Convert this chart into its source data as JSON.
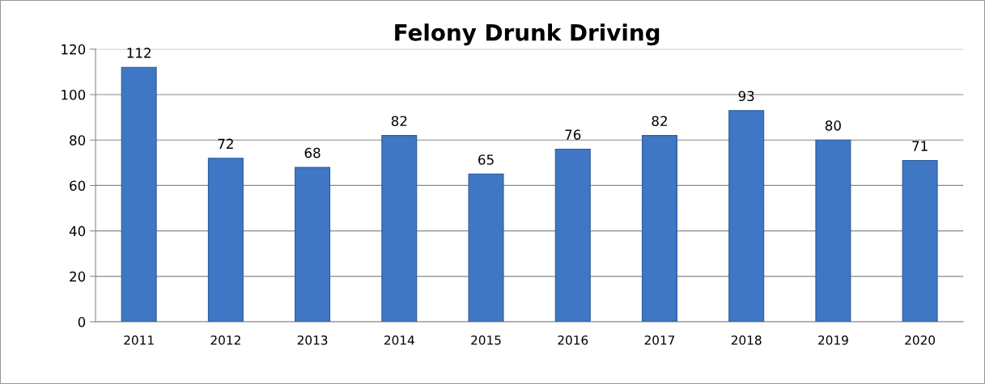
{
  "chart_data": {
    "type": "bar",
    "title": "Felony Drunk Driving",
    "categories": [
      "2011",
      "2012",
      "2013",
      "2014",
      "2015",
      "2016",
      "2017",
      "2018",
      "2019",
      "2020"
    ],
    "values": [
      112,
      72,
      68,
      82,
      65,
      76,
      82,
      93,
      80,
      71
    ],
    "color": "#3f77c4",
    "ylim": [
      0,
      120
    ],
    "yticks": [
      0,
      20,
      40,
      60,
      80,
      100,
      120
    ],
    "grid": "y",
    "data_labels": true,
    "legend": false
  }
}
